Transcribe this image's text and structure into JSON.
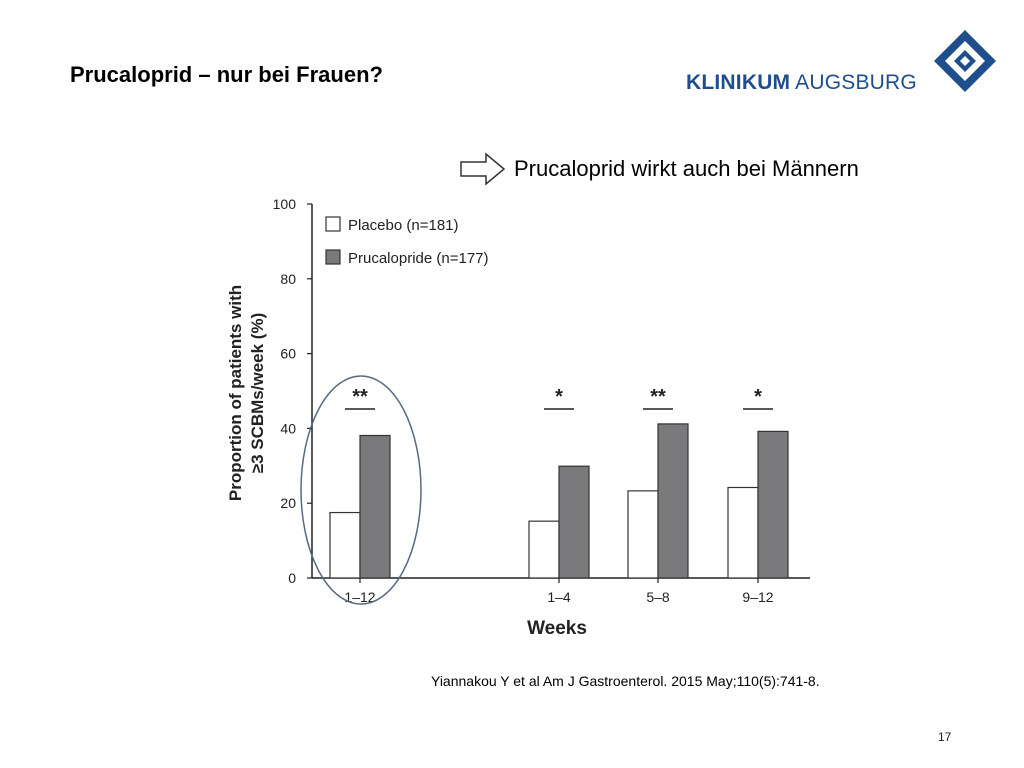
{
  "slide": {
    "title": "Prucaloprid – nur bei Frauen?",
    "headline": "Prucaloprid wirkt auch bei Männern",
    "citation": "Yiannakou Y et al Am J Gastroenterol. 2015 May;110(5):741-8.",
    "page_number": "17"
  },
  "logo": {
    "word1": "KLINIKUM",
    "word2": "AUGSBURG",
    "color": "#1f4e8c",
    "icon": "diamond-logo-icon"
  },
  "colors": {
    "placebo_fill": "#ffffff",
    "prucalopride_fill": "#7a7a7c",
    "bar_stroke": "#333333",
    "highlight_ellipse": "#5a6a80"
  },
  "chart_data": {
    "type": "bar",
    "xlabel": "Weeks",
    "ylabel_line1": "Proportion of patients with",
    "ylabel_line2": "≥3 SCBMs/week (%)",
    "ylim": [
      0,
      100
    ],
    "yticks": [
      "0",
      "20",
      "40",
      "60",
      "80",
      "100"
    ],
    "categories": [
      "1–12",
      "1–4",
      "5–8",
      "9–12"
    ],
    "series": [
      {
        "name": "Placebo",
        "n_label": "(n=181)",
        "values": [
          17.5,
          15.2,
          23.3,
          24.2
        ]
      },
      {
        "name": "Prucalopride",
        "n_label": "(n=177)",
        "values": [
          38.1,
          29.9,
          41.2,
          39.2
        ]
      }
    ],
    "significance": [
      "**",
      "*",
      "**",
      "*"
    ],
    "legend_position": "top-left",
    "highlighted_category": "1–12"
  }
}
